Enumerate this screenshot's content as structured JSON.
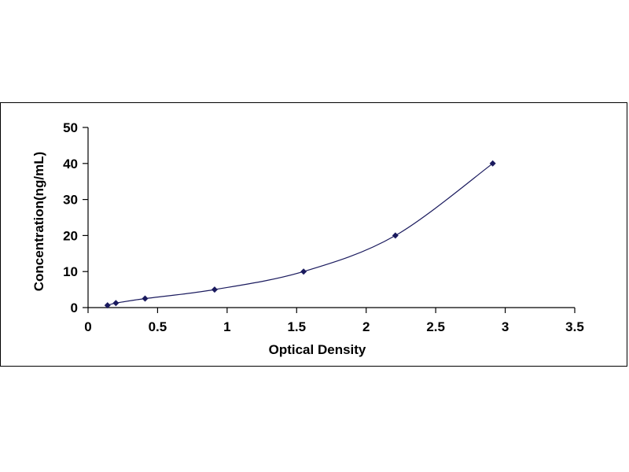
{
  "chart_data": {
    "type": "scatter",
    "title": "",
    "xlabel": "Optical Density",
    "ylabel": "Concentration(ng/mL)",
    "xlim": [
      0,
      3.5
    ],
    "ylim": [
      0,
      50
    ],
    "x_ticks": [
      0,
      0.5,
      1,
      1.5,
      2,
      2.5,
      3,
      3.5
    ],
    "x_tick_labels": [
      "0",
      "0.5",
      "1",
      "1.5",
      "2",
      "2.5",
      "3",
      "3.5"
    ],
    "y_ticks": [
      0,
      10,
      20,
      30,
      40,
      50
    ],
    "y_tick_labels": [
      "0",
      "10",
      "20",
      "30",
      "40",
      "50"
    ],
    "grid": false,
    "legend": "none",
    "series": [
      {
        "x": [
          0.14,
          0.2,
          0.41,
          0.91,
          1.55,
          2.21,
          2.91
        ],
        "y": [
          0.625,
          1.25,
          2.5,
          5,
          10,
          20,
          40
        ],
        "marker": "diamond",
        "color": "#1a1a5e",
        "trendline": true
      }
    ],
    "line_color": "#1a1a5e"
  }
}
